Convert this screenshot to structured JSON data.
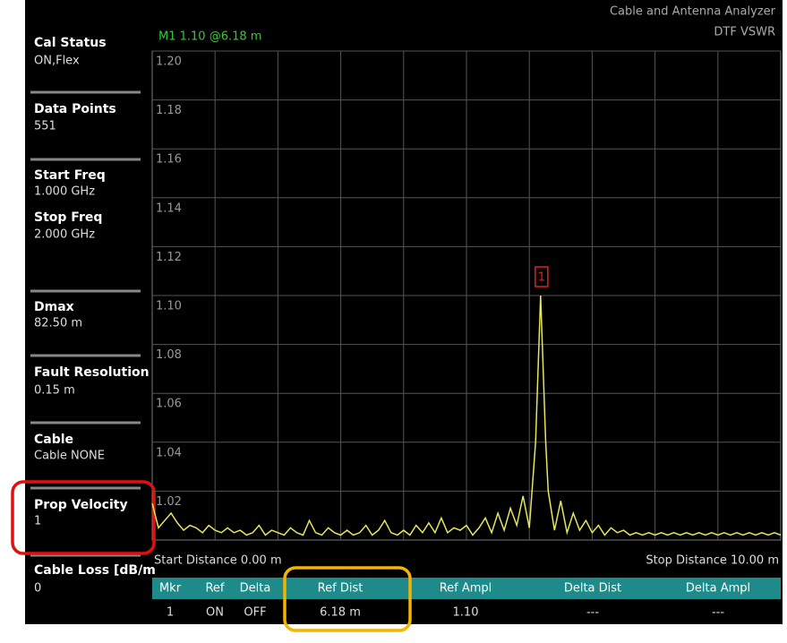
{
  "header": {
    "instrument": "Cable and Antenna Analyzer",
    "mode": "DTF VSWR",
    "marker_readout": "M1 1.10 @6.18 m"
  },
  "side_panel": [
    {
      "label": "Cal Status",
      "value": "ON,Flex"
    },
    {
      "label": "Data Points",
      "value": "551"
    },
    {
      "label": "Start Freq",
      "value": "1.000 GHz"
    },
    {
      "label": "Stop Freq",
      "value": "2.000 GHz"
    },
    {
      "label": "Dmax",
      "value": "82.50 m"
    },
    {
      "label": "Fault Resolution",
      "value": "0.15 m"
    },
    {
      "label": "Cable",
      "value": "Cable NONE"
    },
    {
      "label": "Prop Velocity",
      "value": "1"
    },
    {
      "label": "Cable Loss [dB/m",
      "value": "0"
    }
  ],
  "chart_data": {
    "type": "line",
    "grid": true,
    "xlim": [
      0,
      10
    ],
    "ylim": [
      1.0,
      1.2
    ],
    "yticks": [
      {
        "value": 1.02,
        "label": "1.02"
      },
      {
        "value": 1.04,
        "label": "1.04"
      },
      {
        "value": 1.06,
        "label": "1.06"
      },
      {
        "value": 1.08,
        "label": "1.08"
      },
      {
        "value": 1.1,
        "label": "1.10"
      },
      {
        "value": 1.12,
        "label": "1.12"
      },
      {
        "value": 1.14,
        "label": "1.14"
      },
      {
        "value": 1.16,
        "label": "1.16"
      },
      {
        "value": 1.18,
        "label": "1.18"
      },
      {
        "value": 1.2,
        "label": "1.20"
      }
    ],
    "x": [
      0,
      0.1,
      0.2,
      0.3,
      0.4,
      0.5,
      0.6,
      0.7,
      0.8,
      0.9,
      1.0,
      1.1,
      1.2,
      1.3,
      1.4,
      1.5,
      1.6,
      1.7,
      1.8,
      1.9,
      2.0,
      2.1,
      2.2,
      2.3,
      2.4,
      2.5,
      2.6,
      2.7,
      2.8,
      2.9,
      3.0,
      3.1,
      3.2,
      3.3,
      3.4,
      3.5,
      3.6,
      3.7,
      3.8,
      3.9,
      4.0,
      4.1,
      4.2,
      4.3,
      4.4,
      4.5,
      4.6,
      4.7,
      4.8,
      4.9,
      5.0,
      5.1,
      5.2,
      5.3,
      5.4,
      5.5,
      5.6,
      5.7,
      5.8,
      5.9,
      6.0,
      6.1,
      6.18,
      6.26,
      6.3,
      6.4,
      6.5,
      6.6,
      6.7,
      6.8,
      6.9,
      7.0,
      7.1,
      7.2,
      7.3,
      7.4,
      7.5,
      7.6,
      7.7,
      7.8,
      7.9,
      8.0,
      8.1,
      8.2,
      8.3,
      8.4,
      8.5,
      8.6,
      8.7,
      8.8,
      8.9,
      9.0,
      9.1,
      9.2,
      9.3,
      9.4,
      9.5,
      9.6,
      9.7,
      9.8,
      9.9,
      10.0
    ],
    "series": [
      {
        "name": "DTF VSWR",
        "color": "#e6e65a",
        "values": [
          1.015,
          1.005,
          1.008,
          1.011,
          1.007,
          1.004,
          1.006,
          1.005,
          1.003,
          1.006,
          1.004,
          1.003,
          1.005,
          1.003,
          1.004,
          1.002,
          1.003,
          1.006,
          1.002,
          1.004,
          1.003,
          1.002,
          1.005,
          1.003,
          1.002,
          1.008,
          1.003,
          1.002,
          1.005,
          1.003,
          1.002,
          1.004,
          1.002,
          1.003,
          1.006,
          1.002,
          1.004,
          1.008,
          1.003,
          1.002,
          1.004,
          1.002,
          1.006,
          1.003,
          1.007,
          1.003,
          1.009,
          1.003,
          1.005,
          1.004,
          1.006,
          1.002,
          1.005,
          1.009,
          1.003,
          1.011,
          1.004,
          1.013,
          1.006,
          1.018,
          1.005,
          1.04,
          1.1,
          1.04,
          1.02,
          1.004,
          1.016,
          1.003,
          1.011,
          1.004,
          1.008,
          1.003,
          1.006,
          1.002,
          1.005,
          1.003,
          1.004,
          1.002,
          1.003,
          1.002,
          1.003,
          1.002,
          1.003,
          1.002,
          1.003,
          1.002,
          1.003,
          1.002,
          1.003,
          1.002,
          1.003,
          1.002,
          1.003,
          1.002,
          1.003,
          1.002,
          1.003,
          1.002,
          1.003,
          1.002,
          1.003,
          1.002
        ]
      }
    ],
    "marker": {
      "label": "1",
      "x": 6.18,
      "y": 1.1
    }
  },
  "footer": {
    "start": "Start Distance 0.00 m",
    "stop": "Stop Distance 10.00 m"
  },
  "marker_table": {
    "headers": [
      "Mkr",
      "Ref",
      "Delta",
      "Ref Dist",
      "Ref Ampl",
      "Delta Dist",
      "Delta Ampl"
    ],
    "rows": [
      [
        "1",
        "ON",
        "OFF",
        "6.18 m",
        "1.10",
        "---",
        "---"
      ]
    ]
  }
}
